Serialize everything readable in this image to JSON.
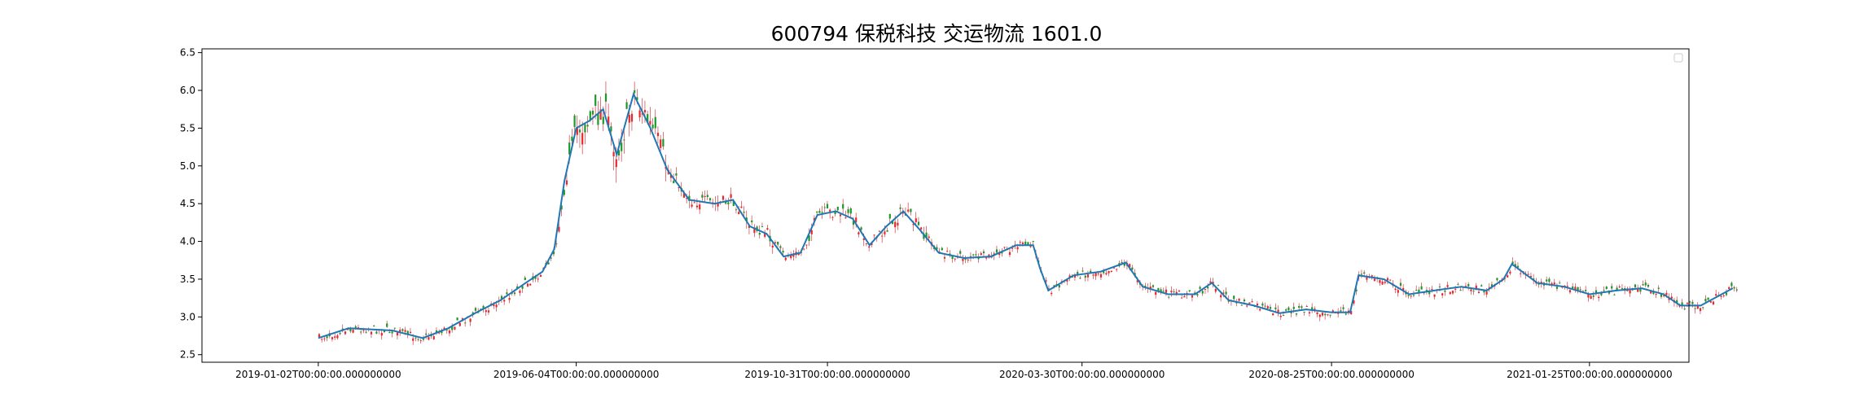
{
  "chart_data": {
    "type": "candlestick",
    "title": "600794 保税科技 交运物流 1601.0",
    "xlabel": "",
    "ylabel": "",
    "y_ticks": [
      "2.5",
      "3.0",
      "3.5",
      "4.0",
      "4.5",
      "5.0",
      "5.5",
      "6.0",
      "6.5"
    ],
    "ylim": [
      2.4,
      6.55
    ],
    "x_ticks": [
      "2019-01-02T00:00:00.000000000",
      "2019-06-04T00:00:00.000000000",
      "2019-10-31T00:00:00.000000000",
      "2020-03-30T00:00:00.000000000",
      "2020-08-25T00:00:00.000000000",
      "2021-01-25T00:00:00.000000000"
    ],
    "xlim": [
      "2018-10-25",
      "2021-03-25"
    ],
    "legend": "top-right (empty)",
    "grid": false,
    "colors": {
      "up": "#e8282b",
      "down": "#1a9a2a",
      "ma_line": "#1f77b4",
      "wick": "#c41e24"
    },
    "series": [
      {
        "name": "",
        "kind": "ma_line",
        "points": [
          [
            "2019-01-02",
            2.72
          ],
          [
            "2019-01-20",
            2.85
          ],
          [
            "2019-02-15",
            2.82
          ],
          [
            "2019-03-05",
            2.72
          ],
          [
            "2019-03-20",
            2.85
          ],
          [
            "2019-04-05",
            3.05
          ],
          [
            "2019-04-20",
            3.22
          ],
          [
            "2019-05-05",
            3.45
          ],
          [
            "2019-05-15",
            3.6
          ],
          [
            "2019-05-22",
            3.9
          ],
          [
            "2019-05-28",
            4.8
          ],
          [
            "2019-06-04",
            5.5
          ],
          [
            "2019-06-12",
            5.6
          ],
          [
            "2019-06-20",
            5.75
          ],
          [
            "2019-06-28",
            5.15
          ],
          [
            "2019-07-08",
            5.95
          ],
          [
            "2019-07-18",
            5.5
          ],
          [
            "2019-07-28",
            4.95
          ],
          [
            "2019-08-10",
            4.55
          ],
          [
            "2019-08-25",
            4.5
          ],
          [
            "2019-09-05",
            4.55
          ],
          [
            "2019-09-15",
            4.2
          ],
          [
            "2019-09-25",
            4.1
          ],
          [
            "2019-10-05",
            3.8
          ],
          [
            "2019-10-15",
            3.85
          ],
          [
            "2019-10-25",
            4.35
          ],
          [
            "2019-11-05",
            4.4
          ],
          [
            "2019-11-15",
            4.3
          ],
          [
            "2019-11-25",
            3.95
          ],
          [
            "2019-12-05",
            4.2
          ],
          [
            "2019-12-15",
            4.4
          ],
          [
            "2019-12-25",
            4.15
          ],
          [
            "2020-01-05",
            3.85
          ],
          [
            "2020-01-20",
            3.78
          ],
          [
            "2020-02-05",
            3.8
          ],
          [
            "2020-02-20",
            3.95
          ],
          [
            "2020-03-01",
            3.95
          ],
          [
            "2020-03-05",
            3.65
          ],
          [
            "2020-03-10",
            3.35
          ],
          [
            "2020-03-25",
            3.55
          ],
          [
            "2020-04-10",
            3.6
          ],
          [
            "2020-04-25",
            3.72
          ],
          [
            "2020-05-05",
            3.4
          ],
          [
            "2020-05-20",
            3.3
          ],
          [
            "2020-06-05",
            3.3
          ],
          [
            "2020-06-15",
            3.45
          ],
          [
            "2020-06-25",
            3.22
          ],
          [
            "2020-07-10",
            3.15
          ],
          [
            "2020-07-25",
            3.05
          ],
          [
            "2020-08-10",
            3.1
          ],
          [
            "2020-08-25",
            3.06
          ],
          [
            "2020-09-05",
            3.06
          ],
          [
            "2020-09-10",
            3.55
          ],
          [
            "2020-09-25",
            3.5
          ],
          [
            "2020-10-10",
            3.3
          ],
          [
            "2020-10-25",
            3.35
          ],
          [
            "2020-11-10",
            3.4
          ],
          [
            "2020-11-25",
            3.35
          ],
          [
            "2020-12-05",
            3.5
          ],
          [
            "2020-12-10",
            3.7
          ],
          [
            "2020-12-25",
            3.45
          ],
          [
            "2021-01-10",
            3.4
          ],
          [
            "2021-01-25",
            3.3
          ],
          [
            "2021-02-10",
            3.35
          ],
          [
            "2021-02-25",
            3.38
          ],
          [
            "2021-03-10",
            3.3
          ],
          [
            "2021-03-20",
            3.15
          ],
          [
            "2021-04-01",
            3.15
          ],
          [
            "2021-04-20",
            3.38
          ]
        ]
      }
    ]
  }
}
